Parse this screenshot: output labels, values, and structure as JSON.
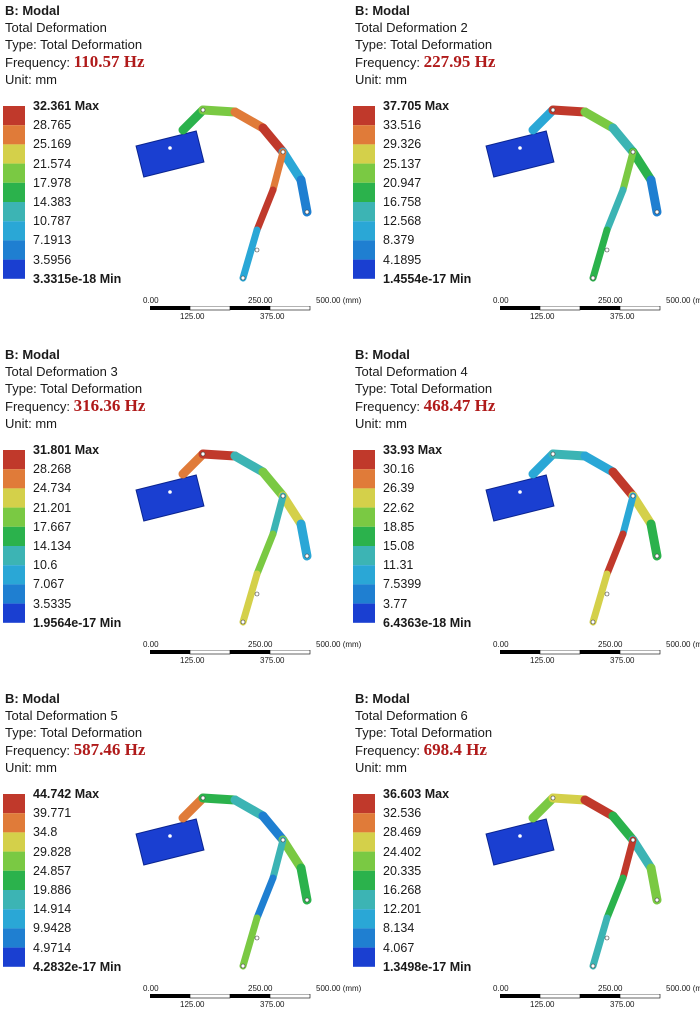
{
  "panels": [
    {
      "system": "B: Modal",
      "result": "Total Deformation",
      "type_label": "Type: Total Deformation",
      "freq_prefix": "Frequency:",
      "freq_value": "110.57 Hz",
      "unit_label": "Unit: mm",
      "legend": [
        "32.361 Max",
        "28.765",
        "25.169",
        "21.574",
        "17.978",
        "14.383",
        "10.787",
        "7.1913",
        "3.5956",
        "3.3315e-18 Min"
      ],
      "colors": [
        "#c0392b",
        "#e07b39",
        "#d4d04a",
        "#7ac943",
        "#2bb24c",
        "#3cb4b4",
        "#2aa7d6",
        "#1f7fd1",
        "#1a3fd1"
      ]
    },
    {
      "system": "B: Modal",
      "result": "Total Deformation 2",
      "type_label": "Type: Total Deformation",
      "freq_prefix": "Frequency:",
      "freq_value": "227.95 Hz",
      "unit_label": "Unit: mm",
      "legend": [
        "37.705 Max",
        "33.516",
        "29.326",
        "25.137",
        "20.947",
        "16.758",
        "12.568",
        "8.379",
        "4.1895",
        "1.4554e-17 Min"
      ],
      "colors": [
        "#c0392b",
        "#e07b39",
        "#d4d04a",
        "#7ac943",
        "#2bb24c",
        "#3cb4b4",
        "#2aa7d6",
        "#1f7fd1",
        "#1a3fd1"
      ]
    },
    {
      "system": "B: Modal",
      "result": "Total Deformation 3",
      "type_label": "Type: Total Deformation",
      "freq_prefix": "Frequency:",
      "freq_value": "316.36 Hz",
      "unit_label": "Unit: mm",
      "legend": [
        "31.801 Max",
        "28.268",
        "24.734",
        "21.201",
        "17.667",
        "14.134",
        "10.6",
        "7.067",
        "3.5335",
        "1.9564e-17 Min"
      ],
      "colors": [
        "#c0392b",
        "#e07b39",
        "#d4d04a",
        "#7ac943",
        "#2bb24c",
        "#3cb4b4",
        "#2aa7d6",
        "#1f7fd1",
        "#1a3fd1"
      ]
    },
    {
      "system": "B: Modal",
      "result": "Total Deformation 4",
      "type_label": "Type: Total Deformation",
      "freq_prefix": "Frequency:",
      "freq_value": "468.47 Hz",
      "unit_label": "Unit: mm",
      "legend": [
        "33.93 Max",
        "30.16",
        "26.39",
        "22.62",
        "18.85",
        "15.08",
        "11.31",
        "7.5399",
        "3.77",
        "6.4363e-18 Min"
      ],
      "colors": [
        "#c0392b",
        "#e07b39",
        "#d4d04a",
        "#7ac943",
        "#2bb24c",
        "#3cb4b4",
        "#2aa7d6",
        "#1f7fd1",
        "#1a3fd1"
      ]
    },
    {
      "system": "B: Modal",
      "result": "Total Deformation 5",
      "type_label": "Type: Total Deformation",
      "freq_prefix": "Frequency:",
      "freq_value": "587.46 Hz",
      "unit_label": "Unit: mm",
      "legend": [
        "44.742 Max",
        "39.771",
        "34.8",
        "29.828",
        "24.857",
        "19.886",
        "14.914",
        "9.9428",
        "4.9714",
        "4.2832e-17 Min"
      ],
      "colors": [
        "#c0392b",
        "#e07b39",
        "#d4d04a",
        "#7ac943",
        "#2bb24c",
        "#3cb4b4",
        "#2aa7d6",
        "#1f7fd1",
        "#1a3fd1"
      ]
    },
    {
      "system": "B: Modal",
      "result": "Total Deformation 6",
      "type_label": "Type: Total Deformation",
      "freq_prefix": "Frequency:",
      "freq_value": "698.4 Hz",
      "unit_label": "Unit: mm",
      "legend": [
        "36.603 Max",
        "32.536",
        "28.469",
        "24.402",
        "20.335",
        "16.268",
        "12.201",
        "8.134",
        "4.067",
        "1.3498e-17 Min"
      ],
      "colors": [
        "#c0392b",
        "#e07b39",
        "#d4d04a",
        "#7ac943",
        "#2bb24c",
        "#3cb4b4",
        "#2aa7d6",
        "#1f7fd1",
        "#1a3fd1"
      ]
    }
  ],
  "scale_bar": {
    "top_labels": [
      "0.00",
      "250.00",
      "500.00 (mm)"
    ],
    "bottom_labels": [
      "125.00",
      "375.00"
    ]
  },
  "model_mode_colors": [
    [
      "#2bb24c",
      "#7ac943",
      "#e07b39",
      "#c0392b",
      "#2aa7d6",
      "#1f7fd1"
    ],
    [
      "#2aa7d6",
      "#c0392b",
      "#7ac943",
      "#3cb4b4",
      "#2bb24c",
      "#1f7fd1"
    ],
    [
      "#e07b39",
      "#c0392b",
      "#3cb4b4",
      "#7ac943",
      "#d4d04a",
      "#2aa7d6"
    ],
    [
      "#2aa7d6",
      "#3cb4b4",
      "#2aa7d6",
      "#c0392b",
      "#d4d04a",
      "#2bb24c"
    ],
    [
      "#e07b39",
      "#2bb24c",
      "#3cb4b4",
      "#1f7fd1",
      "#7ac943",
      "#2bb24c"
    ],
    [
      "#7ac943",
      "#d4d04a",
      "#c0392b",
      "#2bb24c",
      "#3cb4b4",
      "#7ac943"
    ]
  ]
}
